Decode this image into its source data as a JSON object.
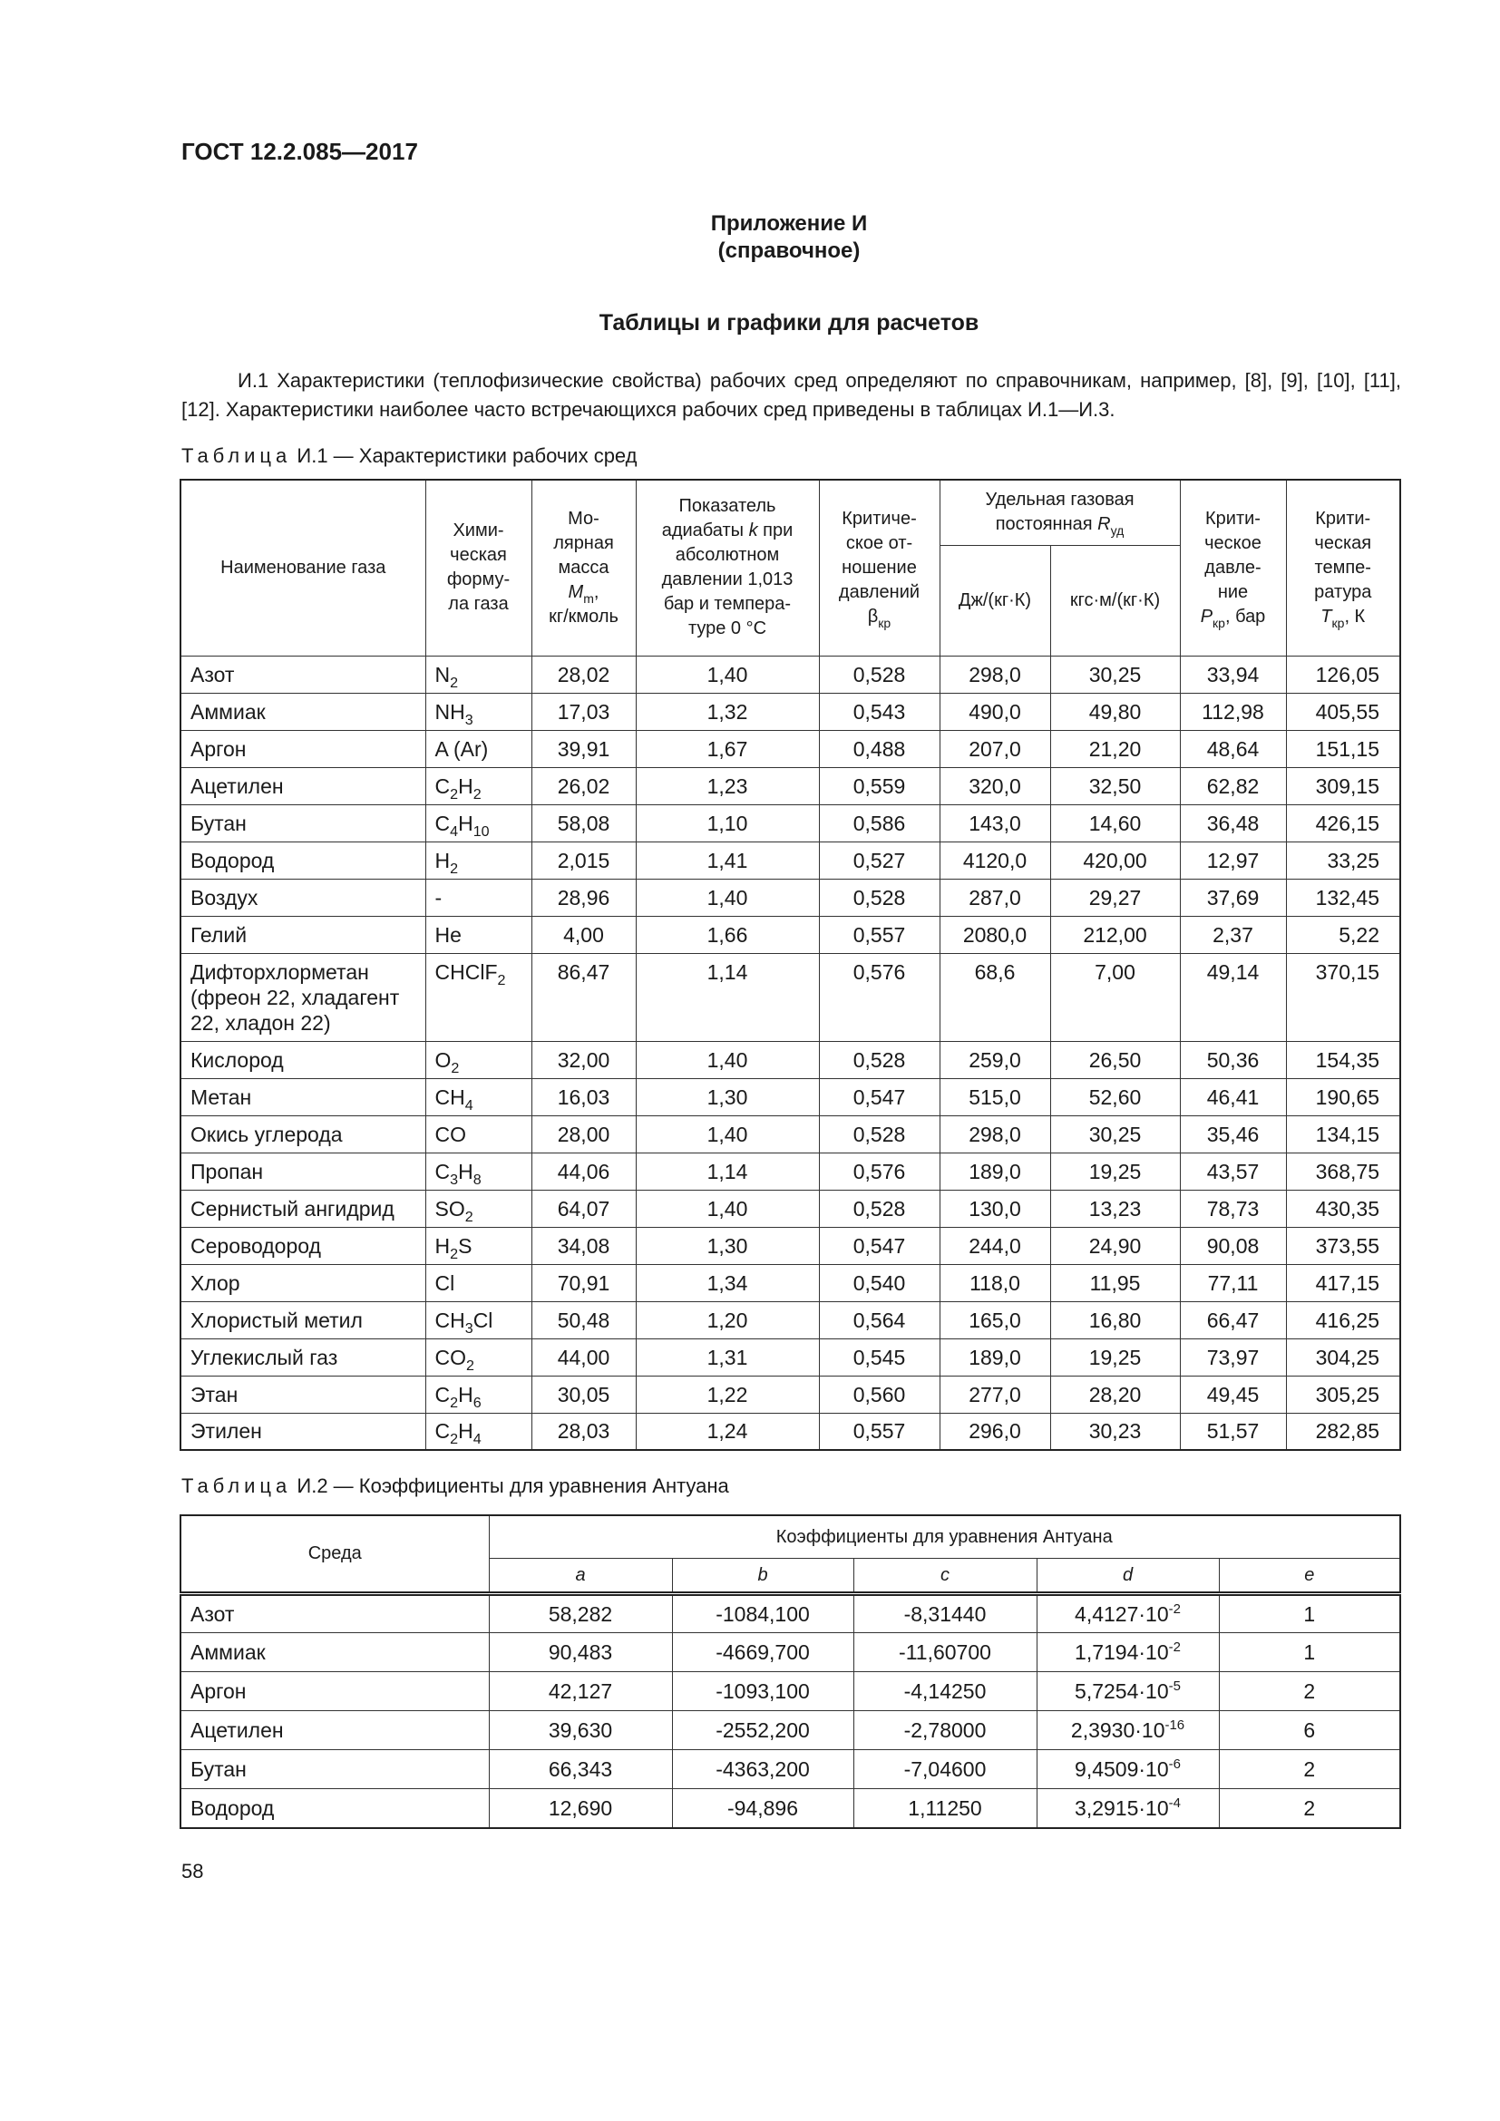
{
  "header": {
    "doc_code": "ГОСТ 12.2.085—2017"
  },
  "appendix": {
    "title": "Приложение И",
    "subtitle": "(справочное)"
  },
  "section_title": "Таблицы и графики для расчетов",
  "paragraph": "И.1 Характеристики (теплофизические свойства) рабочих сред определяют по справочникам, например, [8], [9], [10], [11], [12]. Характеристики наиболее часто встречающихся рабочих сред приведены в таблицах И.1—И.3.",
  "table1": {
    "caption_label": "Таблица",
    "caption_text": "И.1 — Характеристики рабочих сред",
    "headers": {
      "name": "Наименование газа",
      "formula": "Хими-\nческая\nформу-\nла газа",
      "molar_pre": "Мо-\nлярная\nмасса\n",
      "molar_sym": "M",
      "molar_sub": "m",
      "molar_post": ",\nкг/кмоль",
      "adiabatic_pre": "Показатель\nадиабаты ",
      "adiabatic_sym": "k",
      "adiabatic_post": " при\nабсолютном\nдавлении 1,013\nбар и темпера-\nтуре 0 °С",
      "critical_ratio_pre": "Критиче-\nское от-\nношение\nдавлений\n",
      "critical_ratio_sym": "β",
      "critical_ratio_sub": "кр",
      "gas_const_pre": "Удельная газовая\nпостоянная ",
      "gas_const_sym": "R",
      "gas_const_sub": "уд",
      "gas_const_si": "Дж/(кг·К)",
      "gas_const_tech": "кгс·м/(кг·К)",
      "crit_pressure_pre": "Крити-\nческое\nдавле-\nние\n",
      "crit_pressure_sym": "P",
      "crit_pressure_sub": "кр",
      "crit_pressure_post": ", бар",
      "crit_temp_pre": "Крити-\nческая\nтемпе-\nратура\n",
      "crit_temp_sym": "T",
      "crit_temp_sub": "кр",
      "crit_temp_post": ", К"
    },
    "rows": [
      {
        "name": "Азот",
        "formula": [
          [
            "N",
            "2"
          ]
        ],
        "m": "28,02",
        "k": "1,40",
        "beta": "0,528",
        "r_si": "298,0",
        "r_tech": "30,25",
        "p": "33,94",
        "t": "126,05"
      },
      {
        "name": "Аммиак",
        "formula": [
          [
            "NH",
            "3"
          ]
        ],
        "m": "17,03",
        "k": "1,32",
        "beta": "0,543",
        "r_si": "490,0",
        "r_tech": "49,80",
        "p": "112,98",
        "t": "405,55"
      },
      {
        "name": "Аргон",
        "formula": [
          [
            "A (Ar)",
            ""
          ]
        ],
        "m": "39,91",
        "k": "1,67",
        "beta": "0,488",
        "r_si": "207,0",
        "r_tech": "21,20",
        "p": "48,64",
        "t": "151,15"
      },
      {
        "name": "Ацетилен",
        "formula": [
          [
            "C",
            "2"
          ],
          [
            "H",
            "2"
          ]
        ],
        "m": "26,02",
        "k": "1,23",
        "beta": "0,559",
        "r_si": "320,0",
        "r_tech": "32,50",
        "p": "62,82",
        "t": "309,15"
      },
      {
        "name": "Бутан",
        "formula": [
          [
            "C",
            "4"
          ],
          [
            "H",
            "10"
          ]
        ],
        "m": "58,08",
        "k": "1,10",
        "beta": "0,586",
        "r_si": "143,0",
        "r_tech": "14,60",
        "p": "36,48",
        "t": "426,15"
      },
      {
        "name": "Водород",
        "formula": [
          [
            "H",
            "2"
          ]
        ],
        "m": "2,015",
        "k": "1,41",
        "beta": "0,527",
        "r_si": "4120,0",
        "r_tech": "420,00",
        "p": "12,97",
        "t": "33,25"
      },
      {
        "name": "Воздух",
        "formula": [
          [
            "-",
            ""
          ]
        ],
        "m": "28,96",
        "k": "1,40",
        "beta": "0,528",
        "r_si": "287,0",
        "r_tech": "29,27",
        "p": "37,69",
        "t": "132,45"
      },
      {
        "name": "Гелий",
        "formula": [
          [
            "He",
            ""
          ]
        ],
        "m": "4,00",
        "k": "1,66",
        "beta": "0,557",
        "r_si": "2080,0",
        "r_tech": "212,00",
        "p": "2,37",
        "t": "5,22"
      },
      {
        "name": "Дифторхлорметан (фреон 22, хладагент 22, хладон 22)",
        "formula": [
          [
            "CHClF",
            "2"
          ]
        ],
        "m": "86,47",
        "k": "1,14",
        "beta": "0,576",
        "r_si": "68,6",
        "r_tech": "7,00",
        "p": "49,14",
        "t": "370,15",
        "tall": true
      },
      {
        "name": "Кислород",
        "formula": [
          [
            "O",
            "2"
          ]
        ],
        "m": "32,00",
        "k": "1,40",
        "beta": "0,528",
        "r_si": "259,0",
        "r_tech": "26,50",
        "p": "50,36",
        "t": "154,35"
      },
      {
        "name": "Метан",
        "formula": [
          [
            "CH",
            "4"
          ]
        ],
        "m": "16,03",
        "k": "1,30",
        "beta": "0,547",
        "r_si": "515,0",
        "r_tech": "52,60",
        "p": "46,41",
        "t": "190,65"
      },
      {
        "name": "Окись углерода",
        "formula": [
          [
            "CO",
            ""
          ]
        ],
        "m": "28,00",
        "k": "1,40",
        "beta": "0,528",
        "r_si": "298,0",
        "r_tech": "30,25",
        "p": "35,46",
        "t": "134,15"
      },
      {
        "name": "Пропан",
        "formula": [
          [
            "C",
            "3"
          ],
          [
            "H",
            "8"
          ]
        ],
        "m": "44,06",
        "k": "1,14",
        "beta": "0,576",
        "r_si": "189,0",
        "r_tech": "19,25",
        "p": "43,57",
        "t": "368,75"
      },
      {
        "name": "Сернистый ангидрид",
        "formula": [
          [
            "SO",
            "2"
          ]
        ],
        "m": "64,07",
        "k": "1,40",
        "beta": "0,528",
        "r_si": "130,0",
        "r_tech": "13,23",
        "p": "78,73",
        "t": "430,35"
      },
      {
        "name": "Сероводород",
        "formula": [
          [
            "H",
            "2"
          ],
          [
            "S",
            ""
          ]
        ],
        "m": "34,08",
        "k": "1,30",
        "beta": "0,547",
        "r_si": "244,0",
        "r_tech": "24,90",
        "p": "90,08",
        "t": "373,55"
      },
      {
        "name": "Хлор",
        "formula": [
          [
            "Cl",
            ""
          ]
        ],
        "m": "70,91",
        "k": "1,34",
        "beta": "0,540",
        "r_si": "118,0",
        "r_tech": "11,95",
        "p": "77,11",
        "t": "417,15"
      },
      {
        "name": "Хлористый метил",
        "formula": [
          [
            "CH",
            "3"
          ],
          [
            "Cl",
            ""
          ]
        ],
        "m": "50,48",
        "k": "1,20",
        "beta": "0,564",
        "r_si": "165,0",
        "r_tech": "16,80",
        "p": "66,47",
        "t": "416,25"
      },
      {
        "name": "Углекислый газ",
        "formula": [
          [
            "CO",
            "2"
          ]
        ],
        "m": "44,00",
        "k": "1,31",
        "beta": "0,545",
        "r_si": "189,0",
        "r_tech": "19,25",
        "p": "73,97",
        "t": "304,25"
      },
      {
        "name": "Этан",
        "formula": [
          [
            "C",
            "2"
          ],
          [
            "H",
            "6"
          ]
        ],
        "m": "30,05",
        "k": "1,22",
        "beta": "0,560",
        "r_si": "277,0",
        "r_tech": "28,20",
        "p": "49,45",
        "t": "305,25"
      },
      {
        "name": "Этилен",
        "formula": [
          [
            "C",
            "2"
          ],
          [
            "H",
            "4"
          ]
        ],
        "m": "28,03",
        "k": "1,24",
        "beta": "0,557",
        "r_si": "296,0",
        "r_tech": "30,23",
        "p": "51,57",
        "t": "282,85"
      }
    ]
  },
  "table2": {
    "caption_label": "Таблица",
    "caption_text": "И.2 — Коэффициенты для уравнения Антуана",
    "headers": {
      "medium": "Среда",
      "group": "Коэффициенты для уравнения Антуана",
      "cols": [
        "a",
        "b",
        "c",
        "d",
        "e"
      ]
    },
    "rows": [
      {
        "name": "Азот",
        "a": "58,282",
        "b": "-1084,100",
        "c": "-8,31440",
        "d_mant": "4,4127·10",
        "d_exp": "-2",
        "e": "1"
      },
      {
        "name": "Аммиак",
        "a": "90,483",
        "b": "-4669,700",
        "c": "-11,60700",
        "d_mant": "1,7194·10",
        "d_exp": "-2",
        "e": "1"
      },
      {
        "name": "Аргон",
        "a": "42,127",
        "b": "-1093,100",
        "c": "-4,14250",
        "d_mant": "5,7254·10",
        "d_exp": "-5",
        "e": "2"
      },
      {
        "name": "Ацетилен",
        "a": "39,630",
        "b": "-2552,200",
        "c": "-2,78000",
        "d_mant": "2,3930·10",
        "d_exp": "-16",
        "e": "6"
      },
      {
        "name": "Бутан",
        "a": "66,343",
        "b": "-4363,200",
        "c": "-7,04600",
        "d_mant": "9,4509·10",
        "d_exp": "-6",
        "e": "2"
      },
      {
        "name": "Водород",
        "a": "12,690",
        "b": "-94,896",
        "c": "1,11250",
        "d_mant": "3,2915·10",
        "d_exp": "-4",
        "e": "2"
      }
    ]
  },
  "page_number": "58"
}
